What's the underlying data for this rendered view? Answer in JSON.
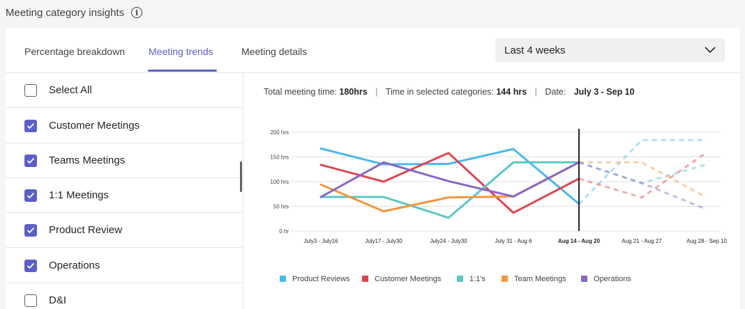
{
  "header": {
    "title": "Meeting category insights",
    "info_icon": "info-icon"
  },
  "tabs": [
    {
      "label": "Percentage breakdown",
      "active": false
    },
    {
      "label": "Meeting trends",
      "active": true
    },
    {
      "label": "Meeting details",
      "active": false
    }
  ],
  "date_range": {
    "value": "Last 4 weeks",
    "icon": "chevron-down-icon"
  },
  "categories": [
    {
      "label": "Select All",
      "checked": false
    },
    {
      "label": "Customer Meetings",
      "checked": true
    },
    {
      "label": "Teams Meetings",
      "checked": true
    },
    {
      "label": "1:1 Meetings",
      "checked": true
    },
    {
      "label": "Product Review",
      "checked": true
    },
    {
      "label": "Operations",
      "checked": true
    },
    {
      "label": "D&I",
      "checked": false
    }
  ],
  "summary": {
    "total_label": "Total meeting time:",
    "total_value": "180hrs",
    "selected_label": "Time in selected categories:",
    "selected_value": "144 hrs",
    "date_label": "Date:",
    "date_value": "July 3 - Sep 10"
  },
  "colors": {
    "accent": "#5b5fc7"
  },
  "chart_data": {
    "type": "line",
    "categories": [
      "July3 - July16",
      "July17 - July30",
      "July24 - July30",
      "July 31 - Aug 6",
      "Aug 14 - Aug 20",
      "Aug 21 - Aug 27",
      "Aug 28 - Sep 10"
    ],
    "current_index": 4,
    "projected_after": "Aug 14 - Aug 20",
    "y_ticks": [
      "0 hr",
      "50 hrs",
      "100 hrs",
      "150 hrs",
      "200 hrs"
    ],
    "ylim": [
      0,
      200
    ],
    "grid": true,
    "legend_position": "bottom",
    "series": [
      {
        "name": "Product Reviews",
        "color": "#4cb8ec",
        "values": [
          167,
          135,
          136,
          166,
          55,
          184,
          184
        ]
      },
      {
        "name": "Customer Meetings",
        "color": "#d9484f",
        "values": [
          134,
          100,
          158,
          37,
          106,
          68,
          159
        ]
      },
      {
        "name": "1:1's",
        "color": "#5bc7c2",
        "values": [
          69,
          69,
          27,
          139,
          139,
          97,
          135
        ]
      },
      {
        "name": "Team Meetings",
        "color": "#f2963f",
        "values": [
          94,
          40,
          68,
          70,
          139,
          139,
          68
        ]
      },
      {
        "name": "Operations",
        "color": "#8766c4",
        "values": [
          69,
          139,
          101,
          70,
          139,
          97,
          44
        ]
      }
    ]
  }
}
